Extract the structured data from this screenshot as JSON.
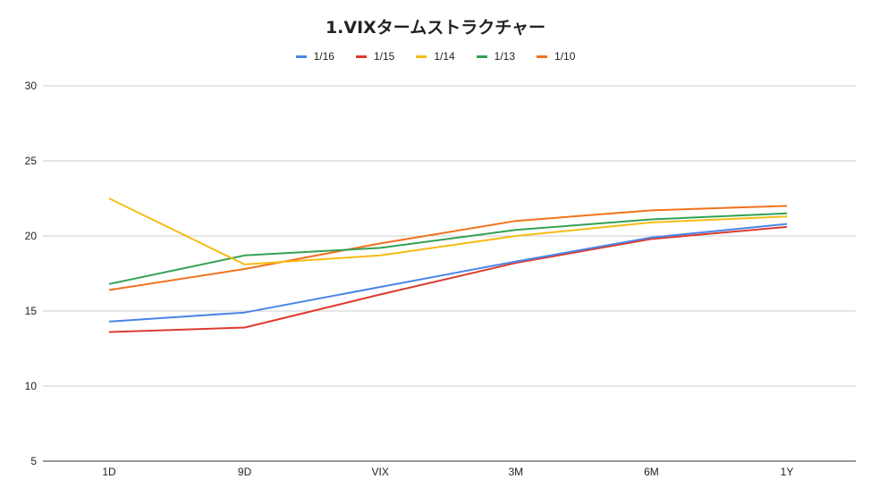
{
  "chart_data": {
    "type": "line",
    "title": "1.VIXタームストラクチャー",
    "xlabel": "",
    "ylabel": "",
    "categories": [
      "1D",
      "9D",
      "VIX",
      "3M",
      "6M",
      "1Y"
    ],
    "ylim": [
      5,
      30
    ],
    "yticks": [
      5,
      10,
      15,
      20,
      25,
      30
    ],
    "grid": true,
    "legend_position": "top",
    "series": [
      {
        "name": "1/16",
        "color": "#4a86e8",
        "values": [
          14.3,
          14.9,
          16.6,
          18.3,
          19.9,
          20.8
        ]
      },
      {
        "name": "1/15",
        "color": "#dc3b2f",
        "values": [
          13.6,
          13.9,
          16.1,
          18.2,
          19.8,
          20.6
        ]
      },
      {
        "name": "1/14",
        "color": "#f6bc14",
        "values": [
          22.5,
          18.1,
          18.7,
          20.0,
          20.9,
          21.3
        ]
      },
      {
        "name": "1/13",
        "color": "#33a154",
        "values": [
          16.8,
          18.7,
          19.2,
          20.4,
          21.1,
          21.5
        ]
      },
      {
        "name": "1/10",
        "color": "#f2711c",
        "values": [
          16.4,
          17.8,
          19.5,
          21.0,
          21.7,
          22.0
        ]
      }
    ]
  }
}
